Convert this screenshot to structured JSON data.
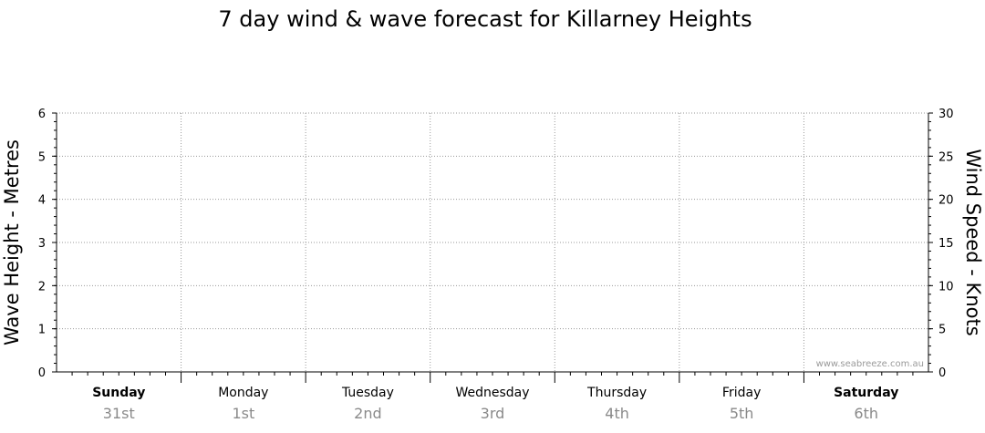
{
  "chart_data": {
    "type": "line",
    "title": "7 day wind & wave forecast for Killarney Heights",
    "left_axis": {
      "label": "Wave Height - Metres",
      "ticks": [
        0,
        1,
        2,
        3,
        4,
        5,
        6
      ],
      "range": [
        0,
        6
      ]
    },
    "right_axis": {
      "label": "Wind Speed - Knots",
      "ticks": [
        0,
        5,
        10,
        15,
        20,
        25,
        30
      ],
      "range": [
        0,
        30
      ]
    },
    "days": [
      {
        "name": "Sunday",
        "date": "31st",
        "bold": true
      },
      {
        "name": "Monday",
        "date": "1st",
        "bold": false
      },
      {
        "name": "Tuesday",
        "date": "2nd",
        "bold": false
      },
      {
        "name": "Wednesday",
        "date": "3rd",
        "bold": false
      },
      {
        "name": "Thursday",
        "date": "4th",
        "bold": false
      },
      {
        "name": "Friday",
        "date": "5th",
        "bold": false
      },
      {
        "name": "Saturday",
        "date": "6th",
        "bold": true
      }
    ],
    "series": [],
    "grid": true,
    "watermark": "www.seabreeze.com.au"
  }
}
